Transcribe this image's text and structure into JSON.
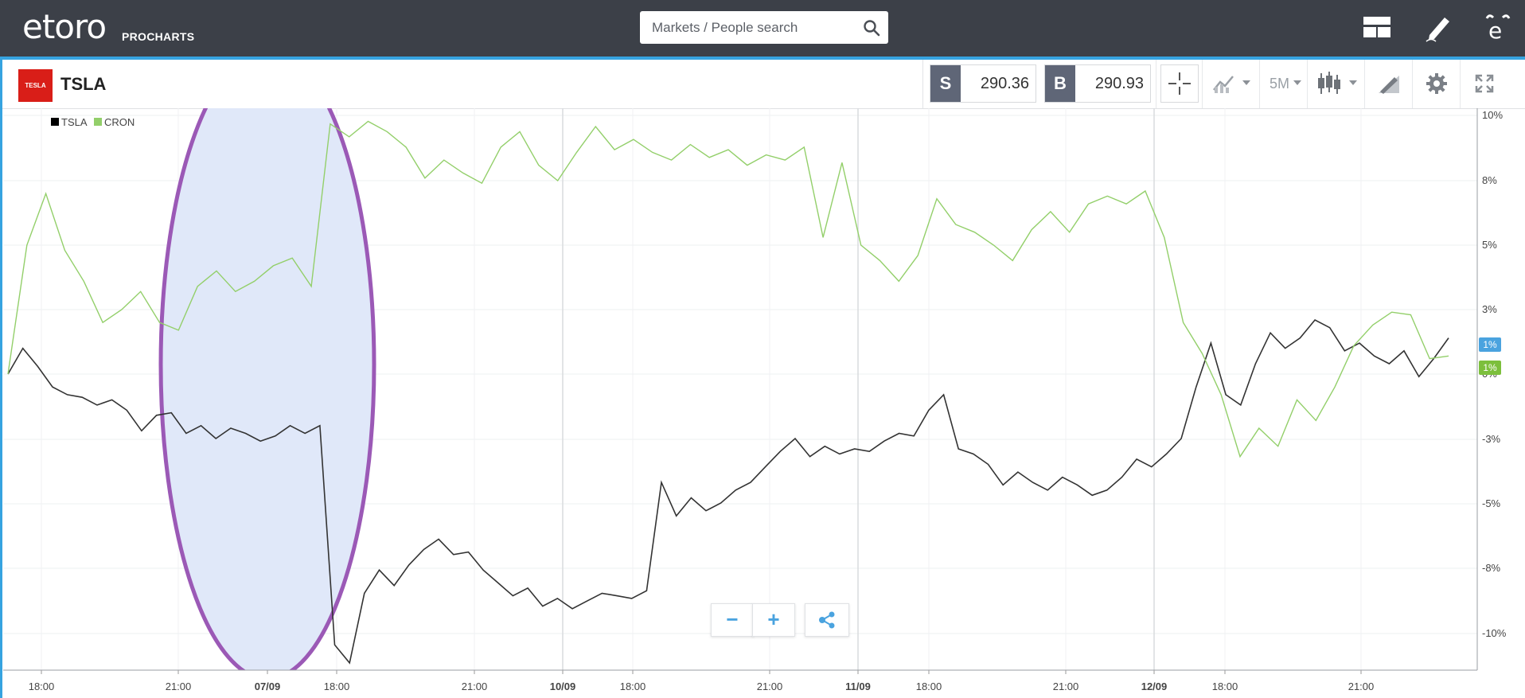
{
  "app": {
    "brand": "etoro",
    "product": "PROCHARTS"
  },
  "header": {
    "search_placeholder": "Markets / People search",
    "icons": [
      "layout-icon",
      "pencil-icon",
      "etoro-profile-icon"
    ]
  },
  "instrument": {
    "logo_text": "TESLA",
    "symbol": "TSLA",
    "sell_label": "S",
    "sell_price": "290.36",
    "buy_label": "B",
    "buy_price": "290.93",
    "timeframe": "5M",
    "tools": [
      "crosshair-icon",
      "compare-chart-icon",
      "candlestick-icon",
      "drawing-tools-icon",
      "settings-icon",
      "fullscreen-icon"
    ]
  },
  "zoom": {
    "out": "−",
    "in": "+",
    "share": "share-icon"
  },
  "colors": {
    "tsla": "#333333",
    "cron": "#93cf6a",
    "accent": "#36a3e0",
    "highlight_fill": "#e0e8f9",
    "highlight_stroke": "#9b59b6"
  },
  "chart_data": {
    "type": "line",
    "legend": [
      "TSLA",
      "CRON"
    ],
    "legend_position": "top-left",
    "y_axis": {
      "position": "right",
      "ticks": [
        "10%",
        "8%",
        "5%",
        "3%",
        "0%",
        "-3%",
        "-5%",
        "-8%",
        "-10%"
      ],
      "range": [
        -11,
        10.5
      ],
      "unit": "%"
    },
    "x_axis": {
      "ticks": [
        "18:00",
        "21:00",
        "07/09",
        "18:00",
        "21:00",
        "10/09",
        "18:00",
        "21:00",
        "11/09",
        "18:00",
        "21:00",
        "12/09",
        "18:00",
        "21:00"
      ],
      "bold_ticks": [
        "07/09",
        "10/09",
        "11/09",
        "12/09"
      ]
    },
    "last_value_badges": [
      {
        "series": "TSLA",
        "text": "1%"
      },
      {
        "series": "CRON",
        "text": "1%"
      }
    ],
    "series": [
      {
        "name": "TSLA",
        "values": [
          0,
          1,
          0.3,
          -0.5,
          -0.8,
          -0.9,
          -1.2,
          -1.0,
          -1.4,
          -2.2,
          -1.6,
          -1.5,
          -2.3,
          -2.0,
          -2.5,
          -2.1,
          -2.3,
          -2.6,
          -2.4,
          -2.0,
          -2.3,
          -2.0,
          -10.5,
          -11.2,
          -8.5,
          -7.6,
          -8.2,
          -7.4,
          -6.8,
          -6.4,
          -7.0,
          -6.9,
          -7.6,
          -8.1,
          -8.6,
          -8.3,
          -9.0,
          -8.7,
          -9.1,
          -8.8,
          -8.5,
          -8.6,
          -8.7,
          -8.4,
          -4.2,
          -5.5,
          -4.8,
          -5.3,
          -5.0,
          -4.5,
          -4.2,
          -3.6,
          -3.0,
          -2.5,
          -3.2,
          -2.8,
          -3.1,
          -2.9,
          -3.0,
          -2.6,
          -2.3,
          -2.4,
          -1.4,
          -0.8,
          -2.9,
          -3.1,
          -3.5,
          -4.3,
          -3.8,
          -4.2,
          -4.5,
          -4.0,
          -4.3,
          -4.7,
          -4.5,
          -4.0,
          -3.3,
          -3.6,
          -3.1,
          -2.5,
          -0.5,
          1.2,
          -0.8,
          -1.2,
          0.4,
          1.6,
          1.0,
          1.4,
          2.1,
          1.8,
          0.9,
          1.2,
          0.7,
          0.4,
          0.9,
          -0.1,
          0.6,
          1.4
        ]
      },
      {
        "name": "CRON",
        "values": [
          0,
          5,
          7,
          4.8,
          3.6,
          2.0,
          2.5,
          3.2,
          2.0,
          1.7,
          3.4,
          4.0,
          3.2,
          3.6,
          4.2,
          4.5,
          3.4,
          9.7,
          9.2,
          9.8,
          9.4,
          8.8,
          7.6,
          8.3,
          7.8,
          7.4,
          8.8,
          9.4,
          8.1,
          7.5,
          8.6,
          9.6,
          8.7,
          9.1,
          8.6,
          8.3,
          8.9,
          8.4,
          8.7,
          8.1,
          8.5,
          8.3,
          8.8,
          5.3,
          8.2,
          5.0,
          4.4,
          3.6,
          4.6,
          6.8,
          5.8,
          5.5,
          5.0,
          4.4,
          5.6,
          6.3,
          5.5,
          6.6,
          6.9,
          6.6,
          7.1,
          5.3,
          2.0,
          0.8,
          -0.8,
          -3.2,
          -2.1,
          -2.8,
          -1.0,
          -1.8,
          -0.5,
          1.1,
          1.9,
          2.4,
          2.3,
          0.6,
          0.7
        ]
      }
    ],
    "annotation": {
      "type": "ellipse",
      "around": "07/09"
    }
  }
}
